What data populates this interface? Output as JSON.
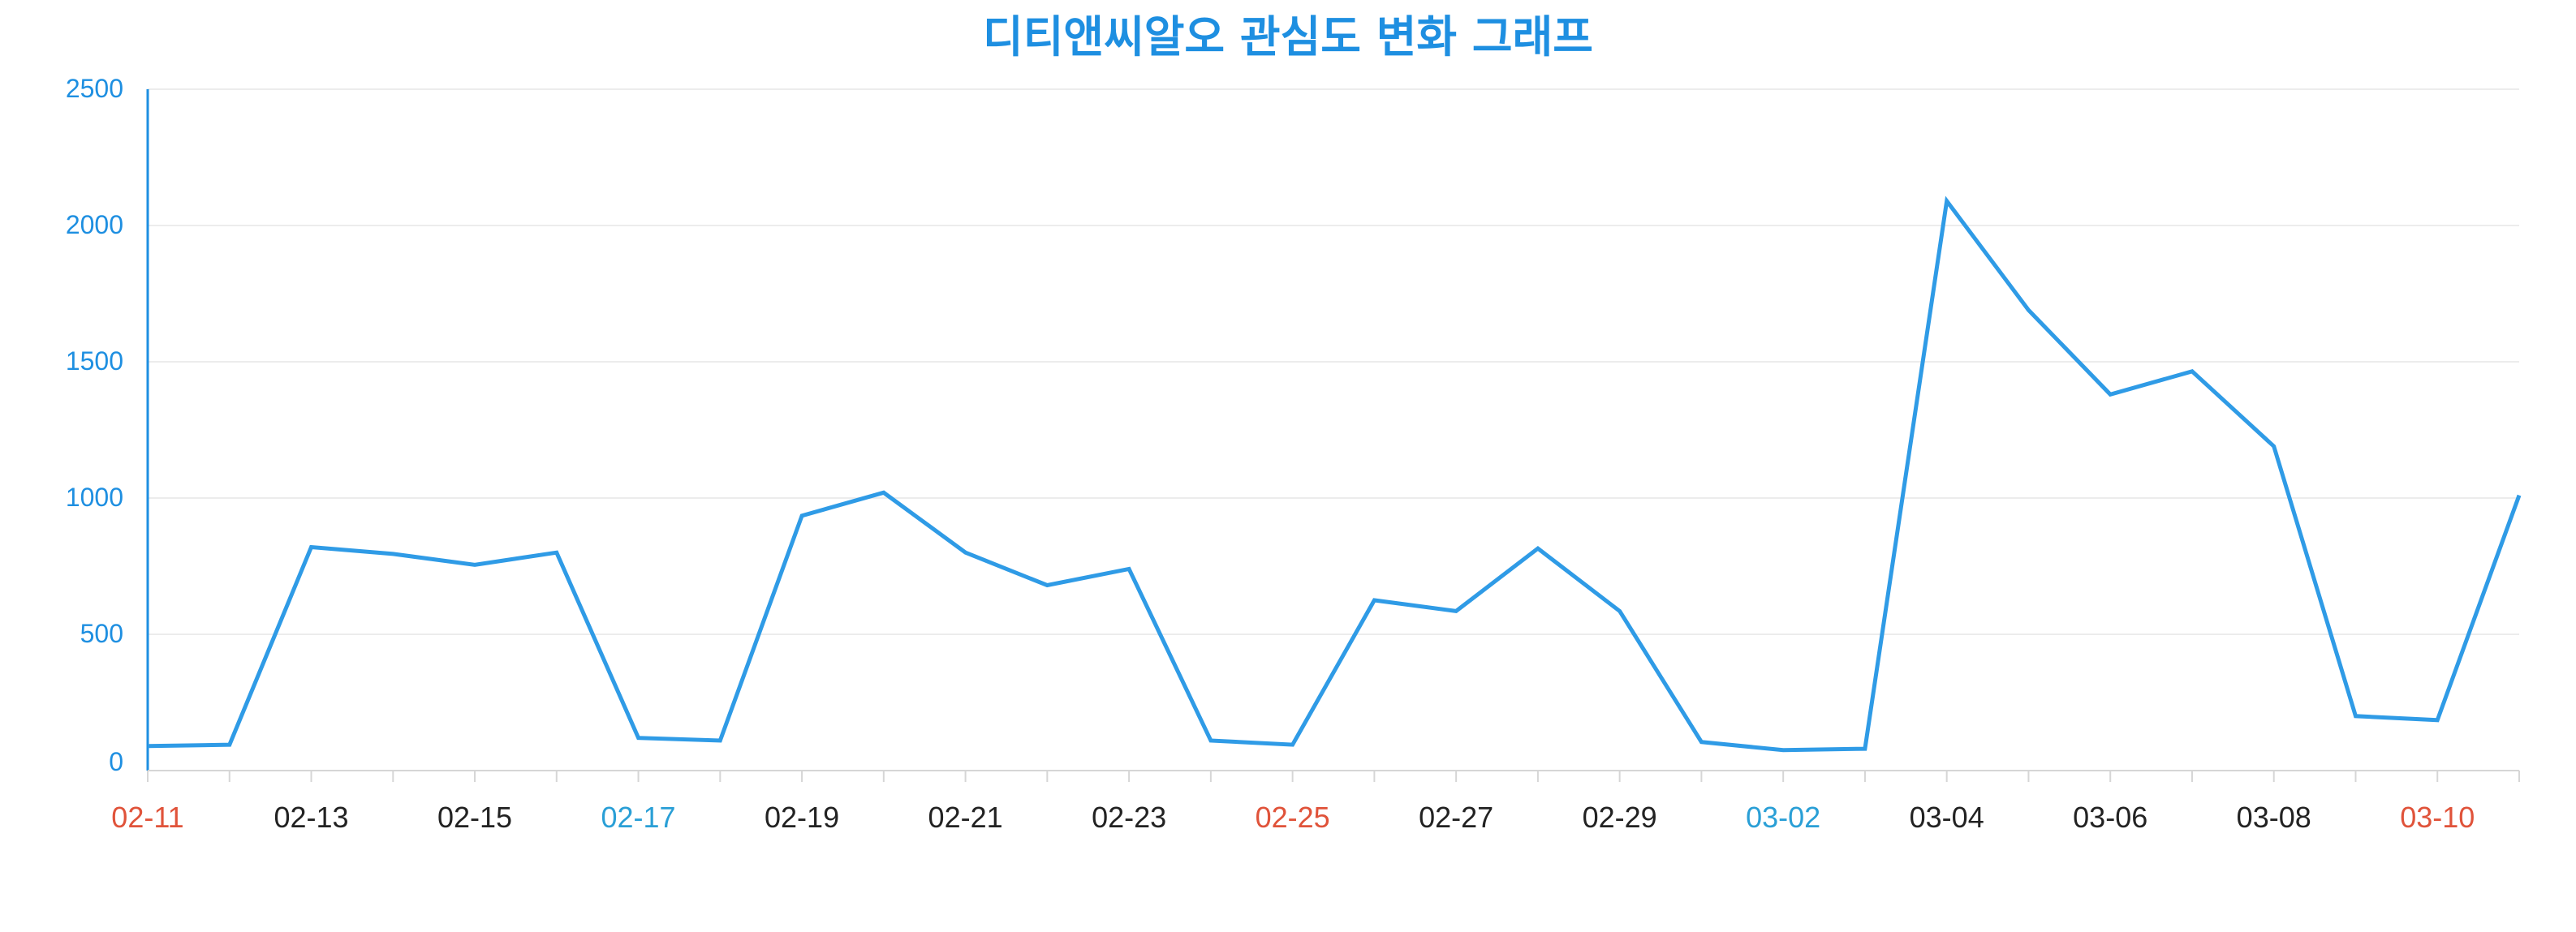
{
  "chart_data": {
    "type": "line",
    "title": "디티앤씨알오 관심도 변화 그래프",
    "xlabel": "",
    "ylabel": "",
    "ylim": [
      0,
      2500
    ],
    "yticks": [
      "0",
      "500",
      "1000",
      "1500",
      "2000",
      "2500"
    ],
    "x": [
      "02-11",
      "02-12",
      "02-13",
      "02-14",
      "02-15",
      "02-16",
      "02-17",
      "02-18",
      "02-19",
      "02-20",
      "02-21",
      "02-22",
      "02-23",
      "02-24",
      "02-25",
      "02-26",
      "02-27",
      "02-28",
      "02-29",
      "03-01",
      "03-02",
      "03-03",
      "03-04",
      "03-05",
      "03-06",
      "03-07",
      "03-08",
      "03-09",
      "03-10",
      "03-11"
    ],
    "xtick_labels": [
      "02-11",
      "02-13",
      "02-15",
      "02-17",
      "02-19",
      "02-21",
      "02-23",
      "02-25",
      "02-27",
      "02-29",
      "03-02",
      "03-04",
      "03-06",
      "03-08",
      "03-10"
    ],
    "xtick_colors": [
      "#e0533a",
      "#222222",
      "#222222",
      "#2a9fd6",
      "#222222",
      "#222222",
      "#222222",
      "#e0533a",
      "#222222",
      "#222222",
      "#2a9fd6",
      "#222222",
      "#222222",
      "#222222",
      "#e0533a"
    ],
    "series": [
      {
        "values": [
          90,
          95,
          820,
          795,
          755,
          800,
          120,
          110,
          935,
          1020,
          800,
          680,
          740,
          110,
          95,
          625,
          585,
          815,
          585,
          105,
          75,
          80,
          2090,
          1690,
          1380,
          1465,
          1190,
          200,
          185,
          1010
        ]
      }
    ],
    "grid": true,
    "colors": {
      "title": "#1e8fe1",
      "line": "#2f9be6",
      "y_axis": "#1e8fe1",
      "y_tick_text": "#1e8fe1",
      "grid": "#ececec",
      "x_axis": "#d6d6d6"
    }
  }
}
